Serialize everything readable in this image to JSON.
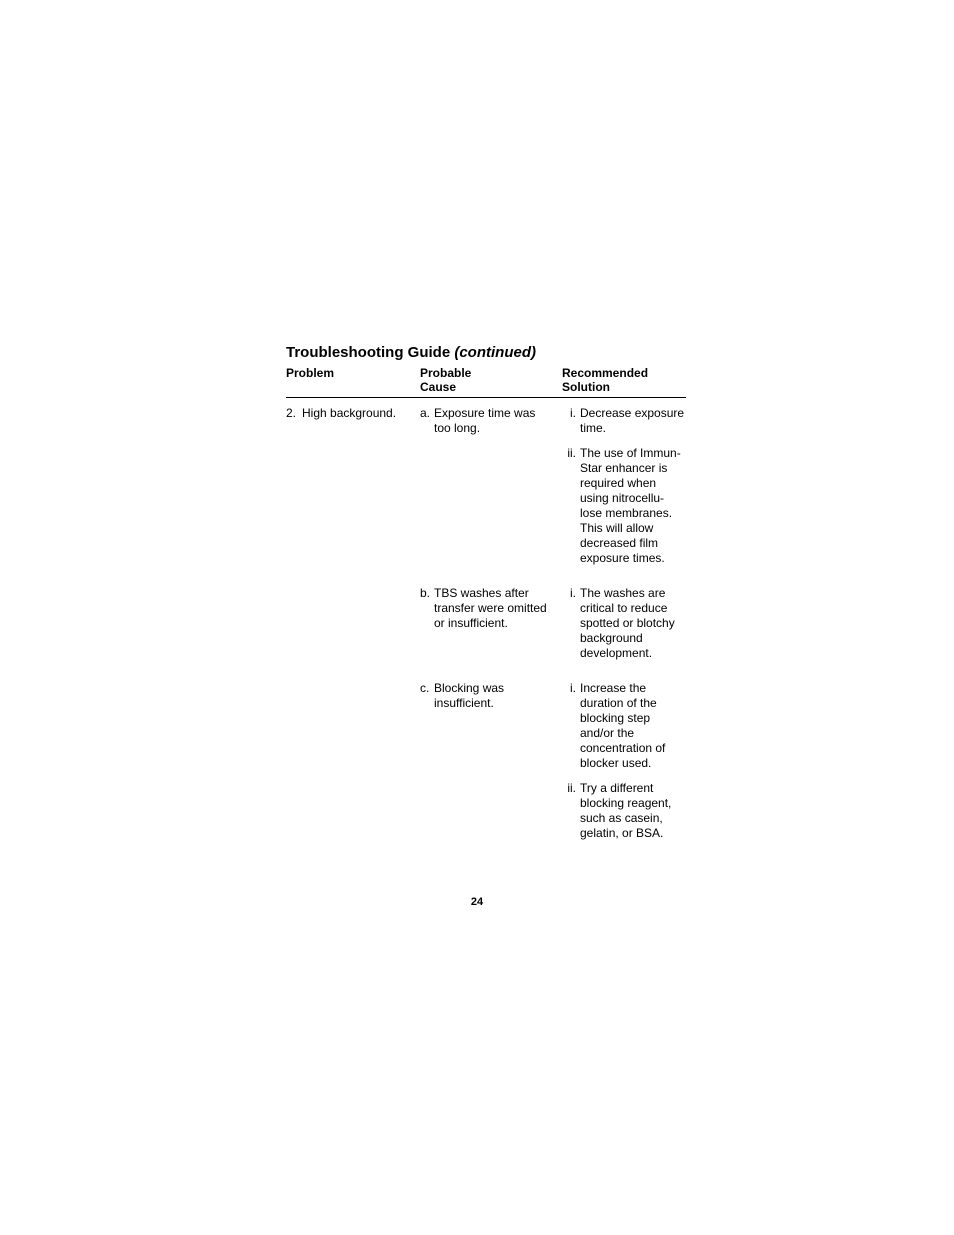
{
  "title": {
    "main": "Troubleshooting Guide ",
    "continued": "(continued)"
  },
  "headers": {
    "problem": "Problem",
    "cause_line1": "Probable",
    "cause_line2": "Cause",
    "solution_line1": "Recommended",
    "solution_line2": "Solution"
  },
  "problem": {
    "marker": "2.",
    "text": "High background."
  },
  "causes": {
    "a": {
      "marker": "a.",
      "text": "Exposure time was too long."
    },
    "b": {
      "marker": "b.",
      "text": "TBS washes after transfer were omitted or insufficient."
    },
    "c": {
      "marker": "c.",
      "text": "Blocking was insufficient."
    }
  },
  "solutions": {
    "a_i": {
      "marker": "i.",
      "text": "Decrease exposure time."
    },
    "a_ii": {
      "marker": "ii.",
      "text": "The use of Immun-Star enhancer is required when using nitrocellu-lose membranes. This will allow decreased film exposure times."
    },
    "b_i": {
      "marker": "i.",
      "text": "The washes are critical to reduce spotted or blotchy background development."
    },
    "c_i": {
      "marker": "i.",
      "text": "Increase the duration of the blocking step and/or the concentration of blocker used."
    },
    "c_ii": {
      "marker": "ii.",
      "text": "Try a different blocking reagent, such as casein, gelatin, or BSA."
    }
  },
  "page_number": "24"
}
